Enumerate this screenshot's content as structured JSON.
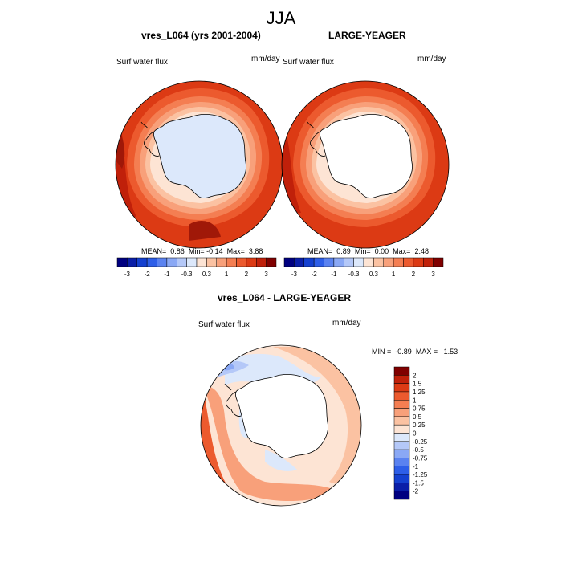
{
  "figure_title": "JJA",
  "panels": [
    {
      "title": "vres_L064 (yrs 2001-2004)",
      "variable": "Surf water flux",
      "units": "mm/day",
      "stats": {
        "mean_label": "MEAN=",
        "mean": "0.86",
        "min_label": "Min=",
        "min": "-0.14",
        "max_label": "Max=",
        "max": "3.88"
      }
    },
    {
      "title": "LARGE-YEAGER",
      "variable": "Surf water flux",
      "units": "mm/day",
      "stats": {
        "mean_label": "MEAN=",
        "mean": "0.89",
        "min_label": "Min=",
        "min": "0.00",
        "max_label": "Max=",
        "max": "2.48"
      }
    },
    {
      "title": "vres_L064 - LARGE-YEAGER",
      "variable": "Surf water flux",
      "units": "mm/day",
      "stats": {
        "min_label": "MIN =",
        "min": "-0.89",
        "max_label": "MAX =",
        "max": "1.53"
      }
    }
  ],
  "colorbar_top": {
    "labels": [
      "-3",
      "-2",
      "-1",
      "-0.3",
      "0.3",
      "1",
      "2",
      "3"
    ],
    "colors": [
      "#000080",
      "#0a1ea8",
      "#1440d0",
      "#2d5ee8",
      "#5a82f0",
      "#8aa8f5",
      "#b4c8f8",
      "#dce8fb",
      "#fde4d4",
      "#fbc2a2",
      "#f8a07a",
      "#f47e52",
      "#ec5a2e",
      "#dc3a14",
      "#c0200a",
      "#800000"
    ]
  },
  "colorbar_diff": {
    "labels": [
      "2",
      "1.5",
      "1.25",
      "1",
      "0.75",
      "0.5",
      "0.25",
      "0",
      "-0.25",
      "-0.5",
      "-0.75",
      "-1",
      "-1.25",
      "-1.5",
      "-2"
    ],
    "colors": [
      "#800000",
      "#c0200a",
      "#dc3a14",
      "#ec5a2e",
      "#f47e52",
      "#f8a07a",
      "#fbc2a2",
      "#fde4d4",
      "#dce8fb",
      "#b4c8f8",
      "#8aa8f5",
      "#5a82f0",
      "#2d5ee8",
      "#1440d0",
      "#0a1ea8",
      "#000080"
    ]
  },
  "field_colors": {
    "deep_red": "#c0200a",
    "red": "#dc3a14",
    "orange_red": "#ec5a2e",
    "orange": "#f47e52",
    "salmon": "#f8a07a",
    "light_salmon": "#fbc2a2",
    "pale": "#fde4d4",
    "pale_blue": "#dce8fb",
    "light_blue": "#b4c8f8",
    "mid_blue": "#8aa8f5",
    "dark_red": "#a01808",
    "antarctica_panel1": "#dce8fb",
    "antarctica_panel2": "#ffffff"
  }
}
